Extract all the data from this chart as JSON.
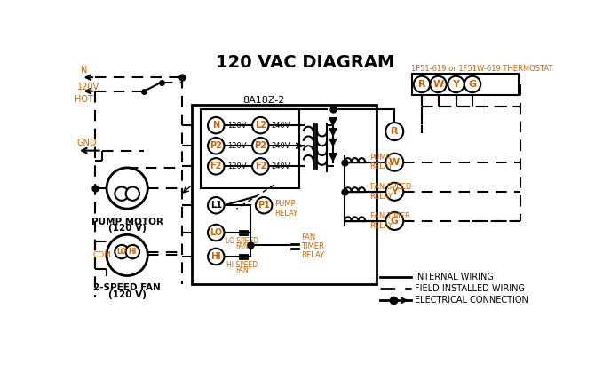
{
  "title": "120 VAC DIAGRAM",
  "background_color": "#ffffff",
  "line_color": "#000000",
  "orange_color": "#CC6600",
  "thermostat_label": "1F51-619 or 1F51W-619 THERMOSTAT",
  "board_label": "8A18Z-2",
  "thermostat_terminals": [
    "R",
    "W",
    "Y",
    "G"
  ],
  "left_terminals": [
    "N",
    "P2",
    "F2"
  ],
  "right_terminals": [
    "L2",
    "P2",
    "F2"
  ],
  "left_voltages": [
    "120V",
    "120V",
    "120V"
  ],
  "right_voltages": [
    "240V",
    "240V",
    "240V"
  ],
  "relay_labels": [
    "PUMP\nRELAY",
    "FAN SPEED\nRELAY",
    "FAN TIMER\nRELAY"
  ],
  "relay_terminals": [
    "R",
    "W",
    "Y",
    "G"
  ],
  "bottom_left_labels": [
    "L1",
    "LO",
    "HI"
  ],
  "pump_motor_label": "PUMP MOTOR\n(120 V)",
  "fan_label": "2-SPEED FAN\n(120 V)",
  "legend": [
    {
      "label": "INTERNAL WIRING",
      "style": "solid"
    },
    {
      "label": "FIELD INSTALLED WIRING",
      "style": "dashed"
    },
    {
      "label": "ELECTRICAL CONNECTION",
      "style": "dot_arrow"
    }
  ]
}
